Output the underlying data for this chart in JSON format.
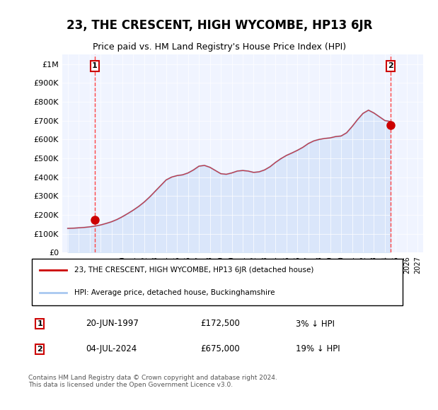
{
  "title": "23, THE CRESCENT, HIGH WYCOMBE, HP13 6JR",
  "subtitle": "Price paid vs. HM Land Registry's House Price Index (HPI)",
  "ylabel": "",
  "ylim": [
    0,
    1050000
  ],
  "yticks": [
    0,
    100000,
    200000,
    300000,
    400000,
    500000,
    600000,
    700000,
    800000,
    900000,
    1000000
  ],
  "ytick_labels": [
    "£0",
    "£100K",
    "£200K",
    "£300K",
    "£400K",
    "£500K",
    "£600K",
    "£700K",
    "£800K",
    "£900K",
    "£1M"
  ],
  "hpi_color": "#a8c8f0",
  "price_color": "#cc0000",
  "dashed_color": "#ff4444",
  "background_color": "#f0f4ff",
  "plot_bg": "#f0f4ff",
  "transaction1": {
    "date": "20-JUN-1997",
    "price": 172500,
    "label": "1",
    "note": "3% ↓ HPI"
  },
  "transaction2": {
    "date": "04-JUL-2024",
    "price": 675000,
    "label": "2",
    "note": "19% ↓ HPI"
  },
  "legend_label1": "23, THE CRESCENT, HIGH WYCOMBE, HP13 6JR (detached house)",
  "legend_label2": "HPI: Average price, detached house, Buckinghamshire",
  "footer": "Contains HM Land Registry data © Crown copyright and database right 2024.\nThis data is licensed under the Open Government Licence v3.0.",
  "x_start_year": 1995,
  "x_end_year": 2027,
  "hpi_years": [
    1995,
    1995.5,
    1996,
    1996.5,
    1997,
    1997.5,
    1998,
    1998.5,
    1999,
    1999.5,
    2000,
    2000.5,
    2001,
    2001.5,
    2002,
    2002.5,
    2003,
    2003.5,
    2004,
    2004.5,
    2005,
    2005.5,
    2006,
    2006.5,
    2007,
    2007.5,
    2008,
    2008.5,
    2009,
    2009.5,
    2010,
    2010.5,
    2011,
    2011.5,
    2012,
    2012.5,
    2013,
    2013.5,
    2014,
    2014.5,
    2015,
    2015.5,
    2016,
    2016.5,
    2017,
    2017.5,
    2018,
    2018.5,
    2019,
    2019.5,
    2020,
    2020.5,
    2021,
    2021.5,
    2022,
    2022.5,
    2023,
    2023.5,
    2024,
    2024.5
  ],
  "hpi_values": [
    128000,
    129000,
    131000,
    133000,
    136000,
    140000,
    146000,
    154000,
    163000,
    175000,
    190000,
    207000,
    225000,
    245000,
    268000,
    295000,
    325000,
    355000,
    385000,
    400000,
    408000,
    412000,
    422000,
    438000,
    458000,
    462000,
    452000,
    435000,
    418000,
    415000,
    422000,
    432000,
    435000,
    432000,
    425000,
    428000,
    438000,
    455000,
    478000,
    498000,
    515000,
    528000,
    542000,
    558000,
    578000,
    592000,
    600000,
    605000,
    608000,
    615000,
    618000,
    635000,
    668000,
    705000,
    738000,
    755000,
    740000,
    720000,
    700000,
    695000
  ],
  "x_tick_years": [
    1995,
    1996,
    1997,
    1998,
    1999,
    2000,
    2001,
    2002,
    2003,
    2004,
    2005,
    2006,
    2007,
    2008,
    2009,
    2010,
    2011,
    2012,
    2013,
    2014,
    2015,
    2016,
    2017,
    2018,
    2019,
    2020,
    2021,
    2022,
    2023,
    2024,
    2025,
    2026,
    2027
  ]
}
